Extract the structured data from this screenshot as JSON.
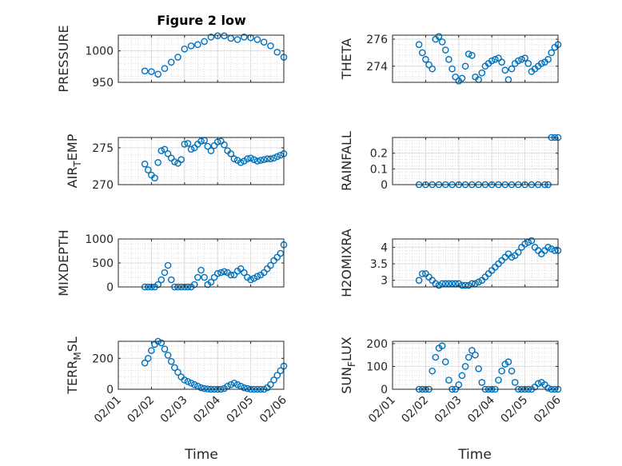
{
  "figure": {
    "title": "Figure 2 low",
    "xlabel": "Time"
  },
  "chart_data": [
    {
      "type": "scatter",
      "ylabel": "PRESSURE",
      "xlim": [
        0,
        5
      ],
      "ylim": [
        950,
        1025
      ],
      "yticks": [
        950,
        1000
      ],
      "yticklabels": [
        "950",
        "1000"
      ],
      "xticks": [
        0,
        1,
        2,
        3,
        4,
        5
      ],
      "xticklabels": [
        "02/01",
        "02/02",
        "02/03",
        "02/04",
        "02/05",
        "02/06"
      ],
      "x": [
        0.8,
        1.0,
        1.2,
        1.4,
        1.6,
        1.8,
        2.0,
        2.2,
        2.4,
        2.6,
        2.8,
        3.0,
        3.2,
        3.4,
        3.6,
        3.8,
        4.0,
        4.2,
        4.4,
        4.6,
        4.8,
        5.0
      ],
      "y": [
        968,
        967,
        963,
        972,
        982,
        990,
        1003,
        1008,
        1010,
        1015,
        1022,
        1024,
        1024,
        1020,
        1018,
        1022,
        1021,
        1018,
        1014,
        1008,
        998,
        990
      ]
    },
    {
      "type": "scatter",
      "ylabel": "THETA",
      "xlim": [
        0,
        5
      ],
      "ylim": [
        272.8,
        276.3
      ],
      "yticks": [
        274,
        276
      ],
      "yticklabels": [
        "274",
        "276"
      ],
      "xticks": [
        0,
        1,
        2,
        3,
        4,
        5
      ],
      "xticklabels": [
        "02/01",
        "02/02",
        "02/03",
        "02/04",
        "02/05",
        "02/06"
      ],
      "x": [
        0.8,
        0.9,
        1.0,
        1.1,
        1.2,
        1.3,
        1.4,
        1.5,
        1.6,
        1.7,
        1.8,
        1.9,
        2.0,
        2.1,
        2.2,
        2.3,
        2.4,
        2.5,
        2.6,
        2.7,
        2.8,
        2.9,
        3.0,
        3.1,
        3.2,
        3.3,
        3.4,
        3.5,
        3.6,
        3.7,
        3.8,
        3.9,
        4.0,
        4.1,
        4.2,
        4.3,
        4.4,
        4.5,
        4.6,
        4.7,
        4.8,
        4.9,
        5.0
      ],
      "y": [
        275.6,
        275.0,
        274.5,
        274.1,
        273.8,
        276.0,
        276.2,
        275.8,
        275.2,
        274.5,
        273.8,
        273.2,
        272.9,
        273.1,
        274.0,
        274.9,
        274.8,
        273.2,
        273.0,
        273.5,
        274.0,
        274.2,
        274.4,
        274.5,
        274.6,
        274.3,
        273.7,
        273.0,
        273.8,
        274.2,
        274.4,
        274.5,
        274.6,
        274.2,
        273.6,
        273.8,
        274.0,
        274.2,
        274.3,
        274.5,
        275.0,
        275.4,
        275.6
      ]
    },
    {
      "type": "scatter",
      "ylabel": "AIR_TEMP",
      "xlim": [
        0,
        5
      ],
      "ylim": [
        270,
        276.4
      ],
      "yticks": [
        270,
        275
      ],
      "yticklabels": [
        "270",
        "275"
      ],
      "xticks": [
        0,
        1,
        2,
        3,
        4,
        5
      ],
      "xticklabels": [
        "02/01",
        "02/02",
        "02/03",
        "02/04",
        "02/05",
        "02/06"
      ],
      "x": [
        0.8,
        0.9,
        1.0,
        1.1,
        1.2,
        1.3,
        1.4,
        1.5,
        1.6,
        1.7,
        1.8,
        1.9,
        2.0,
        2.1,
        2.2,
        2.3,
        2.4,
        2.5,
        2.6,
        2.7,
        2.8,
        2.9,
        3.0,
        3.1,
        3.2,
        3.3,
        3.4,
        3.5,
        3.6,
        3.7,
        3.8,
        3.9,
        4.0,
        4.1,
        4.2,
        4.3,
        4.4,
        4.5,
        4.6,
        4.7,
        4.8,
        4.9,
        5.0
      ],
      "y": [
        272.8,
        272.0,
        271.3,
        270.9,
        273.0,
        274.6,
        274.8,
        274.2,
        273.6,
        273.1,
        272.9,
        273.4,
        275.5,
        275.6,
        274.8,
        275.0,
        275.5,
        275.9,
        276.0,
        275.2,
        274.6,
        275.3,
        275.8,
        275.9,
        275.4,
        274.6,
        274.2,
        273.5,
        273.3,
        273.0,
        273.2,
        273.5,
        273.6,
        273.4,
        273.2,
        273.3,
        273.4,
        273.5,
        273.5,
        273.6,
        273.8,
        274.0,
        274.2
      ]
    },
    {
      "type": "scatter",
      "ylabel": "RAINFALL",
      "xlim": [
        0,
        5
      ],
      "ylim": [
        0,
        0.3
      ],
      "yticks": [
        0,
        0.1,
        0.2
      ],
      "yticklabels": [
        "0",
        "0.1",
        "0.2"
      ],
      "xticks": [
        0,
        1,
        2,
        3,
        4,
        5
      ],
      "xticklabels": [
        "02/01",
        "02/02",
        "02/03",
        "02/04",
        "02/05",
        "02/06"
      ],
      "x": [
        0.8,
        1.0,
        1.2,
        1.4,
        1.6,
        1.8,
        2.0,
        2.2,
        2.4,
        2.6,
        2.8,
        3.0,
        3.2,
        3.4,
        3.6,
        3.8,
        4.0,
        4.2,
        4.4,
        4.6,
        4.7,
        4.8,
        4.9,
        5.0
      ],
      "y": [
        0,
        0,
        0,
        0,
        0,
        0,
        0,
        0,
        0,
        0,
        0,
        0,
        0,
        0,
        0,
        0,
        0,
        0,
        0,
        0,
        0,
        0.3,
        0.3,
        0.3
      ]
    },
    {
      "type": "scatter",
      "ylabel": "MIXDEPTH",
      "xlim": [
        0,
        5
      ],
      "ylim": [
        0,
        1000
      ],
      "yticks": [
        0,
        500,
        1000
      ],
      "yticklabels": [
        "0",
        "500",
        "1000"
      ],
      "xticks": [
        0,
        1,
        2,
        3,
        4,
        5
      ],
      "xticklabels": [
        "02/01",
        "02/02",
        "02/03",
        "02/04",
        "02/05",
        "02/06"
      ],
      "x": [
        0.8,
        0.9,
        1.0,
        1.1,
        1.2,
        1.3,
        1.4,
        1.5,
        1.6,
        1.7,
        1.8,
        1.9,
        2.0,
        2.1,
        2.2,
        2.3,
        2.4,
        2.5,
        2.6,
        2.7,
        2.8,
        2.9,
        3.0,
        3.1,
        3.2,
        3.3,
        3.4,
        3.5,
        3.6,
        3.7,
        3.8,
        3.9,
        4.0,
        4.1,
        4.2,
        4.3,
        4.4,
        4.5,
        4.6,
        4.7,
        4.8,
        4.9,
        5.0
      ],
      "y": [
        0,
        0,
        0,
        0,
        50,
        150,
        300,
        450,
        150,
        0,
        0,
        0,
        0,
        0,
        0,
        50,
        200,
        350,
        200,
        50,
        100,
        200,
        280,
        300,
        320,
        300,
        250,
        250,
        330,
        380,
        300,
        200,
        150,
        180,
        220,
        250,
        300,
        380,
        450,
        550,
        620,
        700,
        880
      ]
    },
    {
      "type": "scatter",
      "ylabel": "H2OMIXRA",
      "xlim": [
        0,
        5
      ],
      "ylim": [
        2.8,
        4.25
      ],
      "yticks": [
        3,
        3.5,
        4
      ],
      "yticklabels": [
        "3",
        "3.5",
        "4"
      ],
      "xticks": [
        0,
        1,
        2,
        3,
        4,
        5
      ],
      "xticklabels": [
        "02/01",
        "02/02",
        "02/03",
        "02/04",
        "02/05",
        "02/06"
      ],
      "x": [
        0.8,
        0.9,
        1.0,
        1.1,
        1.2,
        1.3,
        1.4,
        1.5,
        1.6,
        1.7,
        1.8,
        1.9,
        2.0,
        2.1,
        2.2,
        2.3,
        2.4,
        2.5,
        2.6,
        2.7,
        2.8,
        2.9,
        3.0,
        3.1,
        3.2,
        3.3,
        3.4,
        3.5,
        3.6,
        3.7,
        3.8,
        3.9,
        4.0,
        4.1,
        4.2,
        4.3,
        4.4,
        4.5,
        4.6,
        4.7,
        4.8,
        4.9,
        5.0
      ],
      "y": [
        3.0,
        3.2,
        3.2,
        3.1,
        3.0,
        2.9,
        2.85,
        2.9,
        2.9,
        2.9,
        2.9,
        2.9,
        2.9,
        2.85,
        2.85,
        2.85,
        2.9,
        2.9,
        2.95,
        3.0,
        3.1,
        3.2,
        3.3,
        3.4,
        3.5,
        3.6,
        3.7,
        3.8,
        3.7,
        3.75,
        3.85,
        4.0,
        4.1,
        4.15,
        4.2,
        4.0,
        3.9,
        3.8,
        3.9,
        4.0,
        3.95,
        3.9,
        3.9
      ]
    },
    {
      "type": "scatter",
      "ylabel": "TERR_MSL",
      "xlim": [
        0,
        5
      ],
      "ylim": [
        0,
        310
      ],
      "yticks": [
        0,
        200
      ],
      "yticklabels": [
        "0",
        "200"
      ],
      "xticks": [
        0,
        1,
        2,
        3,
        4,
        5
      ],
      "xticklabels": [
        "02/01",
        "02/02",
        "02/03",
        "02/04",
        "02/05",
        "02/06"
      ],
      "x": [
        0.8,
        0.9,
        1.0,
        1.1,
        1.2,
        1.3,
        1.4,
        1.5,
        1.6,
        1.7,
        1.8,
        1.9,
        2.0,
        2.1,
        2.2,
        2.3,
        2.4,
        2.5,
        2.6,
        2.7,
        2.8,
        2.9,
        3.0,
        3.1,
        3.2,
        3.3,
        3.4,
        3.5,
        3.6,
        3.7,
        3.8,
        3.9,
        4.0,
        4.1,
        4.2,
        4.3,
        4.4,
        4.5,
        4.6,
        4.7,
        4.8,
        4.9,
        5.0
      ],
      "y": [
        170,
        200,
        250,
        290,
        310,
        300,
        260,
        220,
        180,
        140,
        110,
        80,
        60,
        50,
        40,
        30,
        20,
        10,
        5,
        2,
        0,
        0,
        0,
        0,
        5,
        20,
        30,
        40,
        30,
        20,
        10,
        5,
        0,
        0,
        0,
        0,
        0,
        10,
        30,
        60,
        90,
        120,
        150
      ]
    },
    {
      "type": "scatter",
      "ylabel": "SUN_FLUX",
      "xlim": [
        0,
        5
      ],
      "ylim": [
        0,
        210
      ],
      "yticks": [
        0,
        100,
        200
      ],
      "yticklabels": [
        "0",
        "100",
        "200"
      ],
      "xticks": [
        0,
        1,
        2,
        3,
        4,
        5
      ],
      "xticklabels": [
        "02/01",
        "02/02",
        "02/03",
        "02/04",
        "02/05",
        "02/06"
      ],
      "x": [
        0.8,
        0.9,
        1.0,
        1.1,
        1.2,
        1.3,
        1.4,
        1.5,
        1.6,
        1.7,
        1.8,
        1.9,
        2.0,
        2.1,
        2.2,
        2.3,
        2.4,
        2.5,
        2.6,
        2.7,
        2.8,
        2.9,
        3.0,
        3.1,
        3.2,
        3.3,
        3.4,
        3.5,
        3.6,
        3.7,
        3.8,
        3.9,
        4.0,
        4.1,
        4.2,
        4.3,
        4.4,
        4.5,
        4.6,
        4.7,
        4.8,
        4.9,
        5.0
      ],
      "y": [
        0,
        0,
        0,
        0,
        80,
        140,
        180,
        190,
        120,
        40,
        0,
        0,
        20,
        60,
        100,
        140,
        170,
        150,
        90,
        30,
        0,
        0,
        0,
        0,
        40,
        80,
        110,
        120,
        80,
        30,
        0,
        0,
        0,
        0,
        0,
        10,
        25,
        30,
        20,
        5,
        0,
        0,
        0
      ]
    }
  ]
}
